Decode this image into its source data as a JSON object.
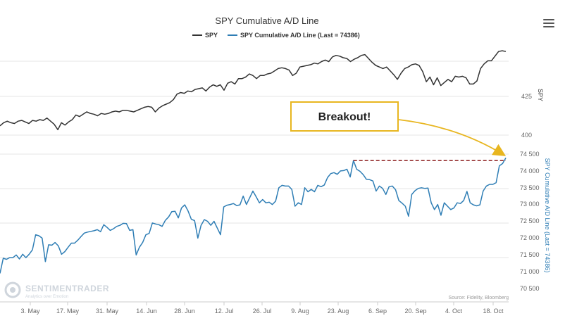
{
  "chart_data": {
    "type": "line",
    "title": "SPY Cumulative A/D Line",
    "legend": [
      "SPY",
      "SPY Cumulative A/D Line (Last = 74386)"
    ],
    "x_tick_labels": [
      "3. May",
      "17. May",
      "31. May",
      "14. Jun",
      "28. Jun",
      "12. Jul",
      "26. Jul",
      "9. Aug",
      "23. Aug",
      "6. Sep",
      "20. Sep",
      "4. Oct",
      "18. Oct"
    ],
    "series": [
      {
        "name": "SPY",
        "color": "#333333",
        "axis_title": "SPY",
        "axis_ticks": [
          "425",
          "400"
        ],
        "values": [
          406,
          408,
          409,
          408,
          407.5,
          409,
          409.5,
          408.5,
          407.5,
          409.5,
          409,
          410,
          409.5,
          411,
          409,
          407,
          403.5,
          408,
          406.5,
          408.5,
          410,
          413,
          412,
          413.5,
          415,
          414,
          413.5,
          412.5,
          414,
          413.5,
          414,
          415,
          415.5,
          415,
          416,
          416,
          415.5,
          415,
          416,
          417,
          418,
          418.5,
          418,
          415,
          417.5,
          419,
          420,
          421,
          423,
          426.5,
          427.5,
          427,
          428.5,
          428,
          429.5,
          430,
          430.5,
          428.5,
          431,
          432.5,
          431.5,
          432.5,
          429,
          433.5,
          434.5,
          433,
          436.5,
          436.5,
          437.5,
          439.5,
          438.5,
          436.5,
          438.5,
          438.5,
          439.5,
          440,
          441.5,
          443,
          443.5,
          443,
          442,
          438.5,
          440,
          444,
          444.5,
          445,
          445.5,
          446.5,
          446,
          447.5,
          448.5,
          447.5,
          450.5,
          451.5,
          451,
          450,
          449.5,
          447.5,
          449,
          450,
          451.5,
          452,
          449.5,
          447,
          445,
          444,
          443,
          444,
          441.5,
          439,
          436,
          440,
          443,
          444,
          445.5,
          446,
          445,
          441,
          434.5,
          437.5,
          432.5,
          437,
          432,
          434,
          436,
          434.5,
          438,
          437.5,
          438,
          437,
          433,
          433,
          435,
          443,
          446,
          448,
          448,
          451,
          454,
          454.5,
          454
        ]
      },
      {
        "name": "SPY Cumulative A/D Line (Last = 74386)",
        "color": "#2f7eb5",
        "axis_title": "SPY Cumulative A/D Line (Last = 74386)",
        "axis_ticks": [
          "74 500",
          "74 000",
          "73 500",
          "73 000",
          "72 500",
          "72 000",
          "71 500",
          "71 000",
          "70 500"
        ],
        "values": [
          70950,
          71400,
          71370,
          71420,
          71420,
          71500,
          71380,
          71520,
          71420,
          71520,
          71650,
          72100,
          72070,
          72000,
          71300,
          71800,
          71790,
          71870,
          71770,
          71520,
          71600,
          71730,
          71850,
          71850,
          71940,
          72050,
          72150,
          72180,
          72200,
          72220,
          72250,
          72190,
          72400,
          72320,
          72230,
          72280,
          72350,
          72380,
          72440,
          72430,
          72230,
          72250,
          71500,
          71730,
          71870,
          72100,
          72140,
          72450,
          72420,
          72400,
          72350,
          72530,
          72630,
          72790,
          72800,
          72600,
          72900,
          72990,
          72810,
          72560,
          72520,
          72000,
          72380,
          72550,
          72500,
          72380,
          72500,
          72300,
          72100,
          72930,
          72980,
          73000,
          73030,
          72970,
          72990,
          73250,
          73000,
          73200,
          73400,
          73230,
          73050,
          73150,
          73050,
          73070,
          73000,
          73100,
          73500,
          73570,
          73550,
          73550,
          73450,
          72950,
          73050,
          73000,
          73500,
          73380,
          73450,
          73380,
          73570,
          73530,
          73580,
          73800,
          73920,
          73950,
          73900,
          74000,
          74010,
          74050,
          73820,
          74310,
          74050,
          73990,
          73890,
          73750,
          73740,
          73700,
          73400,
          73550,
          73480,
          73300,
          73530,
          73550,
          73440,
          73120,
          73040,
          72950,
          72650,
          73300,
          73410,
          73480,
          73500,
          73480,
          73490,
          73050,
          72850,
          73000,
          72680,
          73050,
          72950,
          72850,
          72900,
          73050,
          73030,
          73120,
          73390,
          73050,
          72990,
          72960,
          72990,
          73400,
          73550,
          73600,
          73600,
          73650,
          74150,
          74220,
          74386
        ]
      }
    ],
    "reference_line": {
      "value": 74310,
      "style": "dashed",
      "color": "#8b1a1a"
    },
    "annotation": {
      "text": "Breakout!",
      "border_color": "#e8b620",
      "arrow_color": "#e8b620"
    },
    "credits": "Source: Fidelity, Bloomberg",
    "watermark": {
      "name": "SENTIMENTRADER",
      "sub": "Analytics over Emotion"
    }
  }
}
